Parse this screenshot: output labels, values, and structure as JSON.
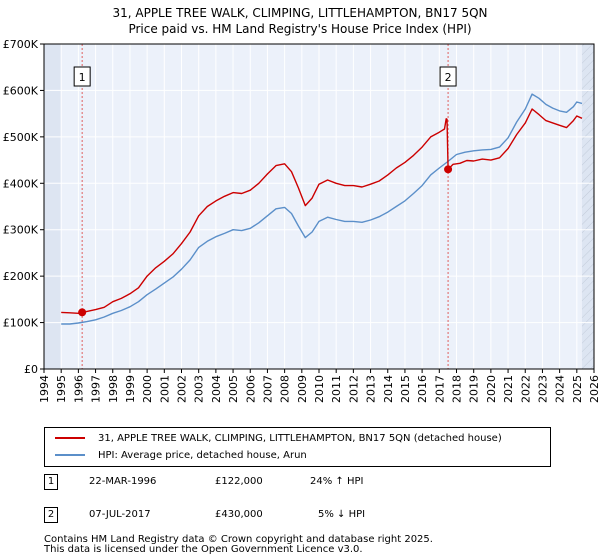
{
  "header": {
    "title": "31, APPLE TREE WALK, CLIMPING, LITTLEHAMPTON, BN17 5QN",
    "subtitle": "Price paid vs. HM Land Registry's House Price Index (HPI)"
  },
  "chart_data": {
    "type": "line",
    "xlim": [
      1994,
      2026
    ],
    "ylim": [
      0,
      700000
    ],
    "x_ticks": [
      "1994",
      "1995",
      "1996",
      "1997",
      "1998",
      "1999",
      "2000",
      "2001",
      "2002",
      "2003",
      "2004",
      "2005",
      "2006",
      "2007",
      "2008",
      "2009",
      "2010",
      "2011",
      "2012",
      "2013",
      "2014",
      "2015",
      "2016",
      "2017",
      "2018",
      "2019",
      "2020",
      "2021",
      "2022",
      "2023",
      "2024",
      "2025",
      "2026"
    ],
    "y_ticks": [
      {
        "value": 0,
        "label": "£0"
      },
      {
        "value": 100000,
        "label": "£100K"
      },
      {
        "value": 200000,
        "label": "£200K"
      },
      {
        "value": 300000,
        "label": "£300K"
      },
      {
        "value": 400000,
        "label": "£400K"
      },
      {
        "value": 500000,
        "label": "£500K"
      },
      {
        "value": 600000,
        "label": "£600K"
      },
      {
        "value": 700000,
        "label": "£700K"
      }
    ],
    "data_range": [
      1995.0,
      2025.3
    ],
    "series": [
      {
        "name": "31, APPLE TREE WALK, CLIMPING, LITTLEHAMPTON, BN17 5QN (detached house)",
        "color": "#cc0000",
        "points": [
          [
            1995.0,
            122000
          ],
          [
            1995.5,
            121000
          ],
          [
            1996.0,
            120000
          ],
          [
            1996.22,
            122000
          ],
          [
            1996.5,
            124000
          ],
          [
            1997.0,
            128000
          ],
          [
            1997.5,
            133000
          ],
          [
            1998.0,
            145000
          ],
          [
            1998.5,
            152000
          ],
          [
            1999.0,
            162000
          ],
          [
            1999.5,
            175000
          ],
          [
            2000.0,
            200000
          ],
          [
            2000.5,
            218000
          ],
          [
            2001.0,
            232000
          ],
          [
            2001.5,
            248000
          ],
          [
            2002.0,
            270000
          ],
          [
            2002.5,
            295000
          ],
          [
            2003.0,
            330000
          ],
          [
            2003.5,
            350000
          ],
          [
            2004.0,
            362000
          ],
          [
            2004.5,
            372000
          ],
          [
            2005.0,
            380000
          ],
          [
            2005.5,
            378000
          ],
          [
            2006.0,
            385000
          ],
          [
            2006.5,
            400000
          ],
          [
            2007.0,
            420000
          ],
          [
            2007.5,
            438000
          ],
          [
            2008.0,
            442000
          ],
          [
            2008.4,
            425000
          ],
          [
            2008.8,
            390000
          ],
          [
            2009.2,
            352000
          ],
          [
            2009.6,
            368000
          ],
          [
            2010.0,
            398000
          ],
          [
            2010.5,
            407000
          ],
          [
            2011.0,
            400000
          ],
          [
            2011.5,
            395000
          ],
          [
            2012.0,
            395000
          ],
          [
            2012.5,
            392000
          ],
          [
            2013.0,
            398000
          ],
          [
            2013.5,
            405000
          ],
          [
            2014.0,
            418000
          ],
          [
            2014.5,
            433000
          ],
          [
            2015.0,
            445000
          ],
          [
            2015.5,
            460000
          ],
          [
            2016.0,
            478000
          ],
          [
            2016.5,
            500000
          ],
          [
            2017.0,
            510000
          ],
          [
            2017.3,
            517000
          ],
          [
            2017.4,
            539000
          ],
          [
            2017.45,
            538000
          ],
          [
            2017.51,
            430000
          ],
          [
            2017.8,
            441000
          ],
          [
            2018.2,
            443000
          ],
          [
            2018.6,
            449000
          ],
          [
            2019.0,
            448000
          ],
          [
            2019.5,
            452000
          ],
          [
            2020.0,
            450000
          ],
          [
            2020.5,
            455000
          ],
          [
            2021.0,
            475000
          ],
          [
            2021.5,
            505000
          ],
          [
            2022.0,
            530000
          ],
          [
            2022.4,
            560000
          ],
          [
            2022.8,
            548000
          ],
          [
            2023.2,
            535000
          ],
          [
            2023.6,
            530000
          ],
          [
            2024.0,
            525000
          ],
          [
            2024.4,
            520000
          ],
          [
            2024.8,
            535000
          ],
          [
            2025.0,
            545000
          ],
          [
            2025.3,
            540000
          ]
        ]
      },
      {
        "name": "HPI: Average price, detached house, Arun",
        "color": "#5b8fc9",
        "points": [
          [
            1995.0,
            97000
          ],
          [
            1995.5,
            97000
          ],
          [
            1996.0,
            99000
          ],
          [
            1996.5,
            102000
          ],
          [
            1997.0,
            106000
          ],
          [
            1997.5,
            112000
          ],
          [
            1998.0,
            120000
          ],
          [
            1998.5,
            126000
          ],
          [
            1999.0,
            134000
          ],
          [
            1999.5,
            145000
          ],
          [
            2000.0,
            160000
          ],
          [
            2000.5,
            172000
          ],
          [
            2001.0,
            185000
          ],
          [
            2001.5,
            198000
          ],
          [
            2002.0,
            215000
          ],
          [
            2002.5,
            235000
          ],
          [
            2003.0,
            262000
          ],
          [
            2003.5,
            275000
          ],
          [
            2004.0,
            285000
          ],
          [
            2004.5,
            292000
          ],
          [
            2005.0,
            300000
          ],
          [
            2005.5,
            298000
          ],
          [
            2006.0,
            303000
          ],
          [
            2006.5,
            315000
          ],
          [
            2007.0,
            330000
          ],
          [
            2007.5,
            345000
          ],
          [
            2008.0,
            348000
          ],
          [
            2008.4,
            335000
          ],
          [
            2008.8,
            308000
          ],
          [
            2009.2,
            283000
          ],
          [
            2009.6,
            295000
          ],
          [
            2010.0,
            318000
          ],
          [
            2010.5,
            327000
          ],
          [
            2011.0,
            322000
          ],
          [
            2011.5,
            318000
          ],
          [
            2012.0,
            318000
          ],
          [
            2012.5,
            316000
          ],
          [
            2013.0,
            321000
          ],
          [
            2013.5,
            328000
          ],
          [
            2014.0,
            338000
          ],
          [
            2014.5,
            350000
          ],
          [
            2015.0,
            362000
          ],
          [
            2015.5,
            378000
          ],
          [
            2016.0,
            395000
          ],
          [
            2016.5,
            418000
          ],
          [
            2017.0,
            433000
          ],
          [
            2017.5,
            447000
          ],
          [
            2018.0,
            462000
          ],
          [
            2018.5,
            467000
          ],
          [
            2019.0,
            470000
          ],
          [
            2019.5,
            472000
          ],
          [
            2020.0,
            473000
          ],
          [
            2020.5,
            478000
          ],
          [
            2021.0,
            498000
          ],
          [
            2021.5,
            532000
          ],
          [
            2022.0,
            560000
          ],
          [
            2022.4,
            592000
          ],
          [
            2022.8,
            583000
          ],
          [
            2023.2,
            570000
          ],
          [
            2023.6,
            562000
          ],
          [
            2024.0,
            556000
          ],
          [
            2024.4,
            553000
          ],
          [
            2024.8,
            565000
          ],
          [
            2025.0,
            575000
          ],
          [
            2025.3,
            572000
          ]
        ]
      }
    ],
    "annotations": [
      {
        "label": "1",
        "x": 1996.22,
        "price": 122000
      },
      {
        "label": "2",
        "x": 2017.51,
        "price": 430000
      }
    ],
    "marker_color": "#cc0000",
    "vline_color": "#e06060",
    "shade_color": "#dde5f2",
    "grid_color": "#ffffff",
    "plot_bg": "#ecf1fa"
  },
  "legend": {
    "items": [
      {
        "label": "31, APPLE TREE WALK, CLIMPING, LITTLEHAMPTON, BN17 5QN (detached house)",
        "color": "#cc0000"
      },
      {
        "label": "HPI: Average price, detached house, Arun",
        "color": "#5b8fc9"
      }
    ]
  },
  "transactions": [
    {
      "num": "1",
      "date": "22-MAR-1996",
      "price": "£122,000",
      "hpi": "24% ↑ HPI"
    },
    {
      "num": "2",
      "date": "07-JUL-2017",
      "price": "£430,000",
      "hpi": "5% ↓ HPI"
    }
  ],
  "footer": {
    "line1": "Contains HM Land Registry data © Crown copyright and database right 2025.",
    "line2": "This data is licensed under the Open Government Licence v3.0."
  }
}
